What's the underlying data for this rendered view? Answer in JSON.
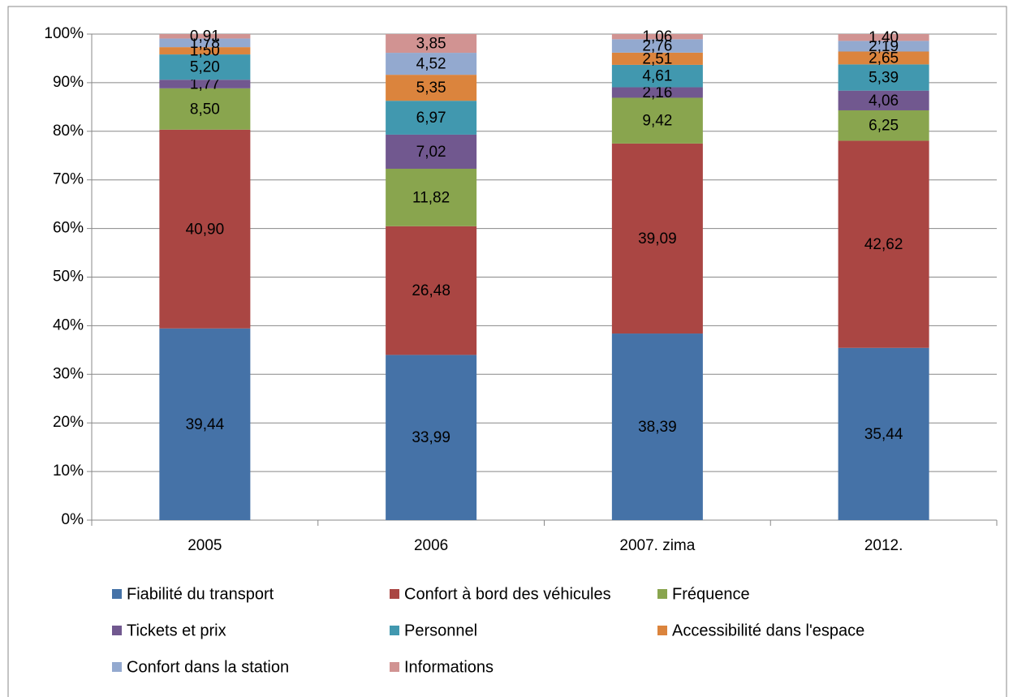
{
  "chart_data": {
    "type": "stacked_bar",
    "categories": [
      "2005",
      "2006",
      "2007. zima",
      "2012."
    ],
    "series": [
      {
        "name": "Fiabilité du transport",
        "color": "#4572a7",
        "values": [
          39.44,
          33.99,
          38.39,
          35.44
        ],
        "value_labels": [
          "39,44",
          "33,99",
          "38,39",
          "35,44"
        ]
      },
      {
        "name": "Confort à bord des véhicules",
        "color": "#aa4643",
        "values": [
          40.9,
          26.48,
          39.09,
          42.62
        ],
        "value_labels": [
          "40,90",
          "26,48",
          "39,09",
          "42,62"
        ]
      },
      {
        "name": "Fréquence",
        "color": "#89a54e",
        "values": [
          8.5,
          11.82,
          9.42,
          6.25
        ],
        "value_labels": [
          "8,50",
          "11,82",
          "9,42",
          "6,25"
        ]
      },
      {
        "name": "Tickets et prix",
        "color": "#71588f",
        "values": [
          1.77,
          7.02,
          2.16,
          4.06
        ],
        "value_labels": [
          "1,77",
          "7,02",
          "2,16",
          "4,06"
        ]
      },
      {
        "name": "Personnel",
        "color": "#4198af",
        "values": [
          5.2,
          6.97,
          4.61,
          5.39
        ],
        "value_labels": [
          "5,20",
          "6,97",
          "4,61",
          "5,39"
        ]
      },
      {
        "name": "Accessibilité dans l'espace",
        "color": "#db843d",
        "values": [
          1.5,
          5.35,
          2.51,
          2.65
        ],
        "value_labels": [
          "1,50",
          "5,35",
          "2,51",
          "2,65"
        ]
      },
      {
        "name": "Confort dans la station",
        "color": "#93a9cf",
        "values": [
          1.78,
          4.52,
          2.76,
          2.19
        ],
        "value_labels": [
          "1,78",
          "4,52",
          "2,76",
          "2,19"
        ]
      },
      {
        "name": "Informations",
        "color": "#d19392",
        "values": [
          0.91,
          3.85,
          1.06,
          1.4
        ],
        "value_labels": [
          "0,91",
          "3,85",
          "1,06",
          "1,40"
        ]
      }
    ],
    "ylim": [
      0,
      100
    ],
    "yticks": [
      {
        "value": 0,
        "label": "0%"
      },
      {
        "value": 10,
        "label": "10%"
      },
      {
        "value": 20,
        "label": "20%"
      },
      {
        "value": 30,
        "label": "30%"
      },
      {
        "value": 40,
        "label": "40%"
      },
      {
        "value": 50,
        "label": "50%"
      },
      {
        "value": 60,
        "label": "60%"
      },
      {
        "value": 70,
        "label": "70%"
      },
      {
        "value": 80,
        "label": "80%"
      },
      {
        "value": 90,
        "label": "90%"
      },
      {
        "value": 100,
        "label": "100%"
      }
    ],
    "grid": true,
    "legend": "bottom"
  }
}
